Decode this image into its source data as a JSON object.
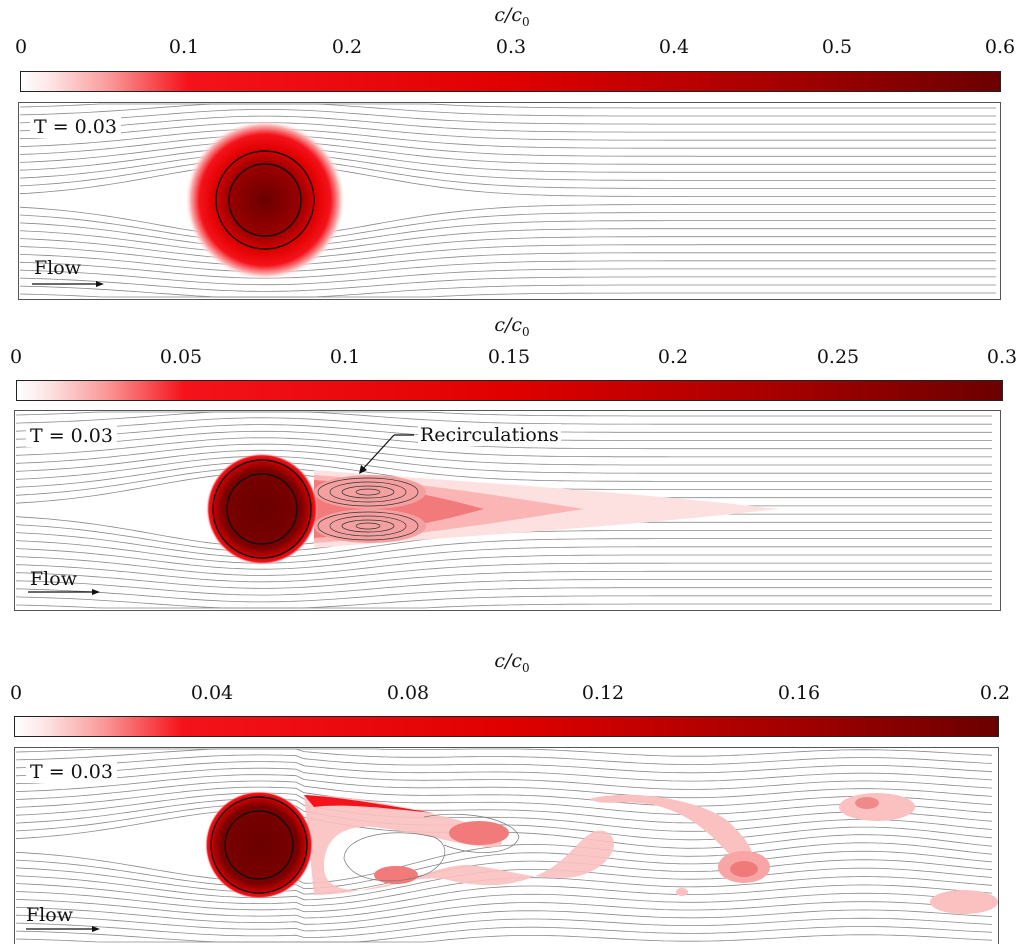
{
  "colorbar_title_main": "c/c",
  "colorbar_title_sub": "0",
  "panels": [
    {
      "ticks": [
        "0",
        "0.1",
        "0.2",
        "0.3",
        "0.4",
        "0.5",
        "0.6"
      ],
      "time_label": "T = 0.03",
      "flow_label": "Flow"
    },
    {
      "ticks": [
        "0",
        "0.05",
        "0.1",
        "0.15",
        "0.2",
        "0.25",
        "0.3"
      ],
      "time_label": "T = 0.03",
      "flow_label": "Flow",
      "annotation": "Recirculations"
    },
    {
      "ticks": [
        "0",
        "0.04",
        "0.08",
        "0.12",
        "0.16",
        "0.2"
      ],
      "time_label": "T = 0.03",
      "flow_label": "Flow"
    }
  ],
  "colors": {
    "light": "#fde0e0",
    "mid": "#f5131b",
    "bright": "#ff0000",
    "dark": "#6b0000",
    "streamline": "#8a8a8a"
  }
}
